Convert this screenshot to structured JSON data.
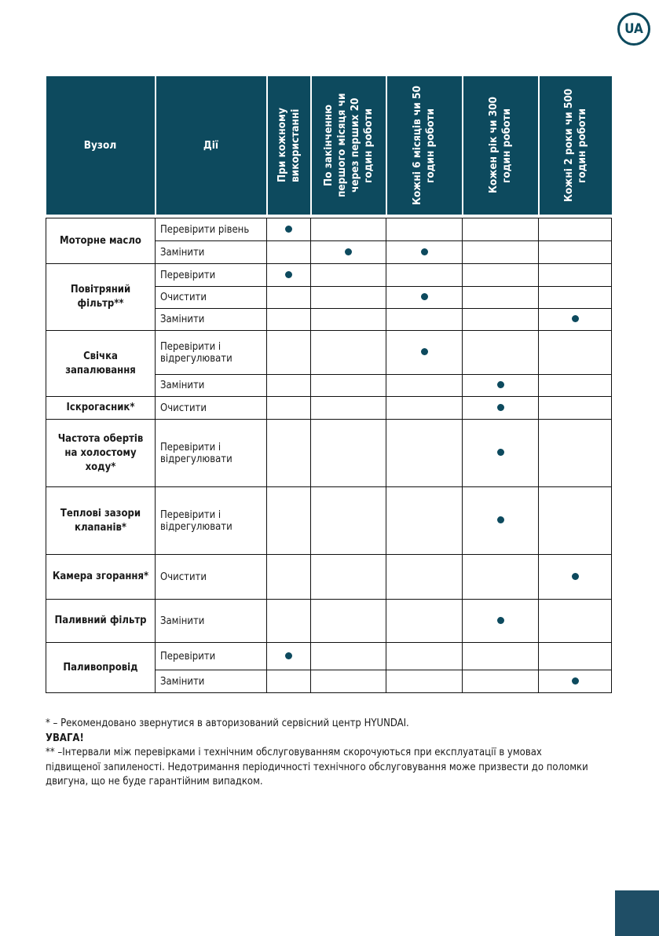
{
  "badge": "UA",
  "table": {
    "headers": [
      "Вузол",
      "Дії",
      "При кожному використанні",
      "По закінченню першого місяця чи через перших 20 годин роботи",
      "Кожні 6 місяців чи 50 годин роботи",
      "Кожен рік чи 300 годин роботи",
      "Кожні 2 роки чи 500 годин роботи"
    ],
    "rows": [
      {
        "node": "Моторне масло",
        "span": 2,
        "action": "Перевірити рівень",
        "dots": [
          0
        ]
      },
      {
        "action": "Замінити",
        "dots": [
          1,
          2
        ]
      },
      {
        "node": "Повітряний фільтр**",
        "span": 3,
        "action": "Перевірити",
        "dots": [
          0
        ]
      },
      {
        "action": "Очистити",
        "dots": [
          2
        ]
      },
      {
        "action": "Замінити",
        "dots": [
          4
        ]
      },
      {
        "node": "Свічка запалювання",
        "span": 2,
        "action": "Перевірити і відрегулювати",
        "dots": [
          2
        ]
      },
      {
        "action": "Замінити",
        "dots": [
          3
        ]
      },
      {
        "node": "Іскрогасник*",
        "span": 1,
        "action": "Очистити",
        "dots": [
          3
        ]
      },
      {
        "node": "Частота обертів на холостому ходу*",
        "span": 1,
        "action": "Перевірити і відрегулювати",
        "dots": [
          3
        ]
      },
      {
        "node": "Теплові зазори клапанів*",
        "span": 1,
        "action": "Перевірити і відрегулювати",
        "dots": [
          3
        ]
      },
      {
        "node": "Камера згорання*",
        "span": 1,
        "action": "Очистити",
        "dots": [
          4
        ]
      },
      {
        "node": "Паливний фільтр",
        "span": 1,
        "action": "Замінити",
        "dots": [
          3
        ]
      },
      {
        "node": "Паливопровід",
        "span": 2,
        "action": "Перевірити",
        "dots": [
          0
        ]
      },
      {
        "action": "Замінити",
        "dots": [
          4
        ]
      }
    ]
  },
  "notes": {
    "note1": "* – Рекомендовано звернутися в авторизований сервісний центр HYUNDAI.",
    "warning": "УВАГА!",
    "note2": "**  –Інтервали між перевірками і технічним обслуговуванням скорочуються при експлуатації в умовах підвищеної запиленості. Недотримання періодичності технічного обслуговування може призвести до поломки двигуна, що не буде гарантійним випадком."
  },
  "colors": {
    "accent": "#0d4a5e",
    "page_box": "#1f4e66"
  }
}
